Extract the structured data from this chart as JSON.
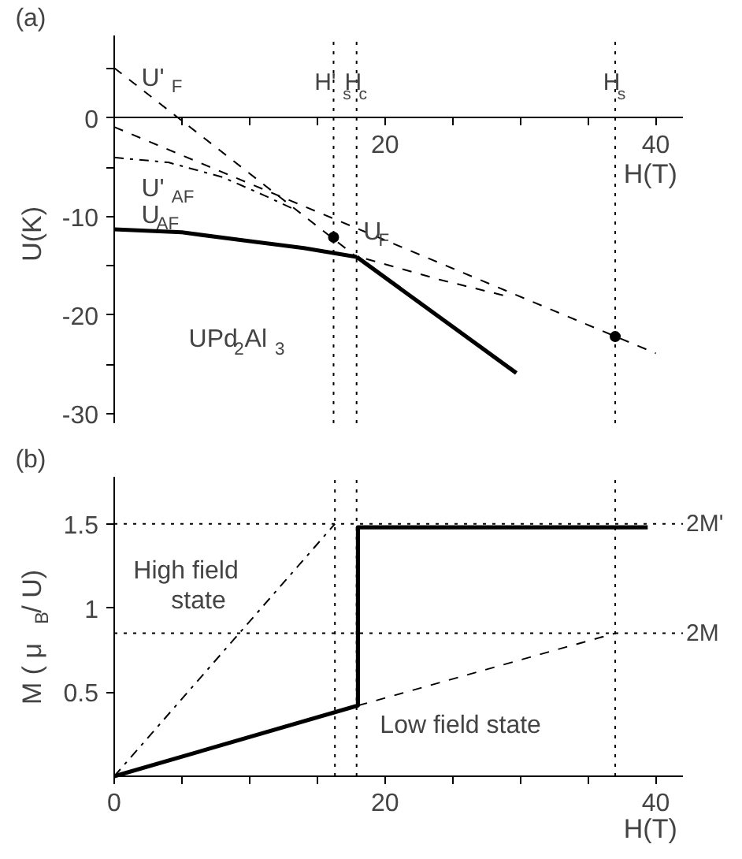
{
  "chart_data": [
    {
      "type": "line",
      "xlabel": "H(T)",
      "ylabel": "U(K)",
      "xlim": [
        0,
        42
      ],
      "ylim": [
        -31,
        8.4
      ],
      "xticks": [
        {
          "value": 5,
          "label": null
        },
        {
          "value": 10,
          "label": null
        },
        {
          "value": 15,
          "label": null
        },
        20,
        {
          "value": 25,
          "label": null
        },
        {
          "value": 30,
          "label": null
        },
        {
          "value": 35,
          "label": null
        },
        40
      ],
      "yticks": [
        {
          "value": 5,
          "label": null
        },
        0,
        {
          "value": -5,
          "label": null
        },
        -10,
        {
          "value": -15,
          "label": null
        },
        -20,
        {
          "value": -25,
          "label": null
        },
        -30
      ],
      "grid": false,
      "marker": "none",
      "series": [
        {
          "color": "#000000",
          "line_style": "dashed",
          "x": [
            0,
            17.9
          ],
          "values": [
            5.1,
            -14.1
          ]
        },
        {
          "color": "#000000",
          "line_style": "solid",
          "x": [
            17.9,
            29.7
          ],
          "values": [
            -14.1,
            -25.9
          ]
        },
        {
          "color": "#000000",
          "line_style": "dashed",
          "x": [
            0,
            40
          ],
          "values": [
            -0.9,
            -23.9
          ]
        },
        {
          "color": "#000000",
          "line_style": "dashdot",
          "x": [
            0,
            4,
            8,
            11,
            13.5
          ],
          "values": [
            -4,
            -4.5,
            -6,
            -7.8,
            -9.4
          ]
        },
        {
          "color": "#000000",
          "line_style": "solid",
          "x": [
            0,
            5,
            10,
            14,
            17.9
          ],
          "values": [
            -11.3,
            -11.6,
            -12.5,
            -13.2,
            -14.1
          ]
        },
        {
          "color": "#000000",
          "line_style": "dashed",
          "x": [
            18.6,
            24,
            29
          ],
          "values": [
            -14.3,
            -16.4,
            -18.1
          ]
        },
        {
          "type": "scatter",
          "marker": "circle",
          "color": "#000000",
          "x": [
            16.2,
            37
          ],
          "values": [
            -12.1,
            -22.2
          ]
        }
      ],
      "ref_lines": [
        {
          "axis": "x",
          "value": 16.2,
          "label": "H'$_{s}$",
          "line_style": "dotted"
        },
        {
          "axis": "x",
          "value": 17.9,
          "label": "H$_{c}$",
          "line_style": "dotted"
        },
        {
          "axis": "x",
          "value": 37,
          "label": "H$_{s}$",
          "line_style": "dotted"
        }
      ],
      "annotations": [
        "(a)",
        "U'$_{F}$",
        "U'$_{AF}$",
        "U$_{AF}$",
        "U$_{F}$",
        "UPd$_{2}$Al$_{3}$"
      ]
    },
    {
      "type": "line",
      "xlabel": "H(T)",
      "ylabel": "M ( μ$_{B}$/ U)",
      "xlim": [
        0,
        42
      ],
      "ylim": [
        0,
        1.78
      ],
      "xticks": [
        0,
        {
          "value": 5,
          "label": null
        },
        {
          "value": 10,
          "label": null
        },
        {
          "value": 15,
          "label": null
        },
        20,
        {
          "value": 25,
          "label": null
        },
        {
          "value": 30,
          "label": null
        },
        {
          "value": 35,
          "label": null
        },
        40
      ],
      "yticks": [
        0.5,
        1,
        1.5
      ],
      "grid": false,
      "marker": "none",
      "series": [
        {
          "color": "#000000",
          "line_style": "solid",
          "x": [
            0,
            18,
            18,
            39.4
          ],
          "values": [
            0,
            0.42,
            1.48,
            1.48
          ]
        },
        {
          "color": "#000000",
          "line_style": "dashed",
          "x": [
            18,
            37
          ],
          "values": [
            0.42,
            0.85
          ]
        },
        {
          "color": "#000000",
          "line_style": "dashdot",
          "x": [
            0,
            16.3
          ],
          "values": [
            0,
            1.5
          ]
        }
      ],
      "ref_lines": [
        {
          "axis": "x",
          "value": 16.3,
          "line_style": "dotted"
        },
        {
          "axis": "x",
          "value": 17.9,
          "line_style": "dotted"
        },
        {
          "axis": "x",
          "value": 37,
          "line_style": "dotted"
        },
        {
          "axis": "y",
          "value": 1.5,
          "label": "2M'",
          "line_style": "dotted"
        },
        {
          "axis": "y",
          "value": 0.85,
          "label": "2M",
          "line_style": "dotted"
        }
      ],
      "annotations": [
        "(b)",
        "High field\nstate",
        "Low field state"
      ]
    }
  ]
}
